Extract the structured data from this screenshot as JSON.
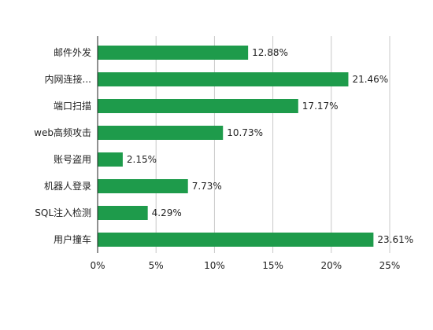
{
  "chart_data": {
    "type": "bar",
    "orientation": "horizontal",
    "categories": [
      "邮件外发",
      "内网连接...",
      "端口扫描",
      "web高频攻击",
      "账号盗用",
      "机器人登录",
      "SQL注入检测",
      "用户撞车"
    ],
    "values": [
      12.88,
      21.46,
      17.17,
      10.73,
      2.15,
      7.73,
      4.29,
      23.61
    ],
    "value_labels": [
      "12.88%",
      "21.46%",
      "17.17%",
      "10.73%",
      "2.15%",
      "7.73%",
      "4.29%",
      "23.61%"
    ],
    "x_ticks": [
      0,
      5,
      10,
      15,
      20,
      25
    ],
    "x_tick_labels": [
      "0%",
      "5%",
      "10%",
      "15%",
      "20%",
      "25%"
    ],
    "xlim": [
      0,
      25
    ],
    "title": "",
    "xlabel": "",
    "ylabel": "",
    "grid": "vertical",
    "legend": "none",
    "bar_color": "#1e9b4b"
  }
}
